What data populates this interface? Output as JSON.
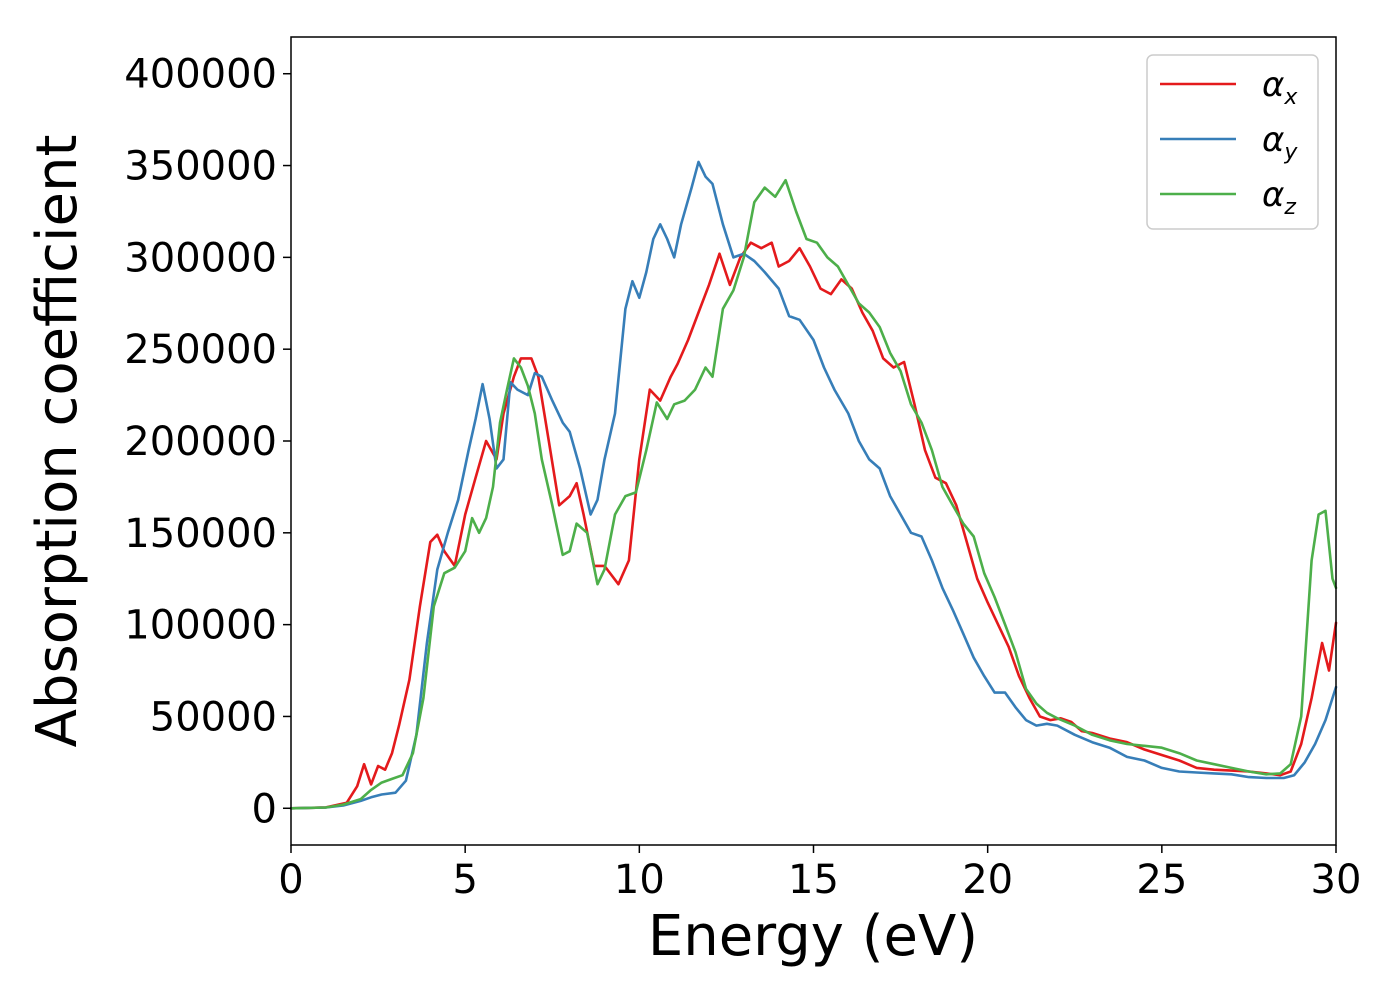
{
  "chart_data": {
    "type": "line",
    "title": "",
    "xlabel": "Energy (eV)",
    "ylabel": "Absorption coefficient",
    "xlim": [
      0,
      30
    ],
    "ylim": [
      -20000,
      420000
    ],
    "xticks": [
      0,
      5,
      10,
      15,
      20,
      25,
      30
    ],
    "yticks": [
      0,
      50000,
      100000,
      150000,
      200000,
      250000,
      300000,
      350000,
      400000
    ],
    "grid": false,
    "legend_position": "top-right",
    "series": [
      {
        "name": "x",
        "legend_symbol": "α",
        "legend_subscript": "x",
        "color": "#e41a1c",
        "x": [
          0,
          1,
          1.6,
          1.9,
          2.1,
          2.3,
          2.5,
          2.7,
          2.9,
          3.1,
          3.4,
          3.7,
          4.0,
          4.2,
          4.4,
          4.7,
          5.0,
          5.3,
          5.6,
          5.9,
          6.1,
          6.4,
          6.6,
          6.9,
          7.1,
          7.4,
          7.7,
          8.0,
          8.2,
          8.4,
          8.7,
          9.0,
          9.4,
          9.7,
          10.0,
          10.3,
          10.6,
          10.9,
          11.1,
          11.4,
          11.7,
          12.0,
          12.3,
          12.6,
          12.9,
          13.2,
          13.5,
          13.8,
          14.0,
          14.3,
          14.6,
          14.9,
          15.2,
          15.5,
          15.8,
          16.1,
          16.4,
          16.7,
          17.0,
          17.3,
          17.6,
          17.9,
          18.2,
          18.5,
          18.8,
          19.1,
          19.4,
          19.7,
          20.0,
          20.3,
          20.6,
          20.9,
          21.2,
          21.5,
          21.8,
          22.1,
          22.4,
          22.7,
          23.0,
          23.5,
          24.0,
          24.5,
          25.0,
          25.5,
          26.0,
          26.5,
          27.0,
          27.5,
          28.0,
          28.4,
          28.7,
          29.0,
          29.3,
          29.6,
          29.8,
          30.0
        ],
        "y": [
          0,
          500,
          3000,
          12000,
          24000,
          13000,
          23000,
          21000,
          30000,
          45000,
          70000,
          110000,
          145000,
          149000,
          140000,
          132000,
          160000,
          180000,
          200000,
          190000,
          215000,
          235000,
          245000,
          245000,
          235000,
          200000,
          165000,
          170000,
          177000,
          160000,
          132000,
          132000,
          122000,
          135000,
          190000,
          228000,
          222000,
          235000,
          242000,
          255000,
          270000,
          285000,
          302000,
          285000,
          300000,
          308000,
          305000,
          308000,
          295000,
          298000,
          305000,
          295000,
          283000,
          280000,
          288000,
          283000,
          270000,
          260000,
          245000,
          240000,
          243000,
          220000,
          195000,
          180000,
          177000,
          165000,
          145000,
          125000,
          112000,
          100000,
          88000,
          72000,
          60000,
          50000,
          48000,
          49000,
          47000,
          42000,
          41000,
          38000,
          36000,
          32000,
          29000,
          26000,
          22000,
          21000,
          20500,
          20000,
          19000,
          18000,
          20000,
          35000,
          60000,
          90000,
          75000,
          101000
        ]
      },
      {
        "name": "y",
        "legend_symbol": "α",
        "legend_subscript": "y",
        "color": "#377eb8",
        "x": [
          0,
          1,
          1.5,
          2.0,
          2.3,
          2.6,
          3.0,
          3.3,
          3.6,
          3.9,
          4.2,
          4.5,
          4.8,
          5.1,
          5.3,
          5.5,
          5.7,
          5.9,
          6.1,
          6.3,
          6.5,
          6.8,
          7.0,
          7.2,
          7.5,
          7.8,
          8.0,
          8.3,
          8.6,
          8.8,
          9.0,
          9.3,
          9.6,
          9.8,
          10.0,
          10.2,
          10.4,
          10.6,
          10.8,
          11.0,
          11.2,
          11.5,
          11.7,
          11.9,
          12.1,
          12.4,
          12.7,
          13.0,
          13.3,
          13.6,
          14.0,
          14.3,
          14.6,
          15.0,
          15.3,
          15.6,
          16.0,
          16.3,
          16.6,
          16.9,
          17.2,
          17.5,
          17.8,
          18.1,
          18.4,
          18.7,
          19.0,
          19.3,
          19.6,
          19.9,
          20.2,
          20.5,
          20.8,
          21.1,
          21.4,
          21.7,
          22.0,
          22.5,
          23.0,
          23.5,
          24.0,
          24.5,
          25.0,
          25.5,
          26.0,
          26.5,
          27.0,
          27.5,
          28.0,
          28.5,
          28.8,
          29.1,
          29.4,
          29.7,
          30.0
        ],
        "y": [
          0,
          400,
          1500,
          4000,
          6000,
          7500,
          8500,
          15000,
          40000,
          90000,
          130000,
          150000,
          168000,
          195000,
          212000,
          231000,
          212000,
          185000,
          190000,
          232000,
          228000,
          225000,
          237000,
          235000,
          222000,
          210000,
          205000,
          185000,
          160000,
          168000,
          190000,
          215000,
          272000,
          287000,
          278000,
          292000,
          310000,
          318000,
          310000,
          300000,
          318000,
          338000,
          352000,
          344000,
          340000,
          318000,
          300000,
          302000,
          298000,
          292000,
          283000,
          268000,
          266000,
          255000,
          240000,
          228000,
          215000,
          200000,
          190000,
          185000,
          170000,
          160000,
          150000,
          148000,
          135000,
          120000,
          108000,
          95000,
          82000,
          72000,
          63000,
          63000,
          55000,
          48000,
          45000,
          46000,
          45000,
          40000,
          36000,
          33000,
          28000,
          26000,
          22000,
          20000,
          19500,
          19000,
          18500,
          17000,
          16500,
          16500,
          18000,
          25000,
          35000,
          48000,
          66000
        ]
      },
      {
        "name": "z",
        "legend_symbol": "α",
        "legend_subscript": "z",
        "color": "#4daf4a",
        "x": [
          0,
          1,
          1.5,
          2.0,
          2.3,
          2.6,
          2.9,
          3.2,
          3.5,
          3.8,
          4.1,
          4.4,
          4.7,
          5.0,
          5.2,
          5.4,
          5.6,
          5.8,
          6.0,
          6.2,
          6.4,
          6.6,
          6.8,
          7.0,
          7.2,
          7.5,
          7.8,
          8.0,
          8.2,
          8.5,
          8.8,
          9.0,
          9.3,
          9.6,
          9.9,
          10.2,
          10.5,
          10.8,
          11.0,
          11.3,
          11.6,
          11.9,
          12.1,
          12.4,
          12.7,
          13.0,
          13.3,
          13.6,
          13.9,
          14.2,
          14.5,
          14.8,
          15.1,
          15.4,
          15.7,
          16.0,
          16.3,
          16.6,
          16.9,
          17.2,
          17.5,
          17.8,
          18.1,
          18.4,
          18.7,
          19.0,
          19.3,
          19.6,
          19.9,
          20.2,
          20.5,
          20.8,
          21.1,
          21.4,
          21.7,
          22.0,
          22.5,
          23.0,
          23.5,
          24.0,
          24.5,
          25.0,
          25.5,
          26.0,
          26.5,
          27.0,
          27.5,
          28.0,
          28.4,
          28.7,
          29.0,
          29.3,
          29.5,
          29.7,
          29.9,
          30.0
        ],
        "y": [
          0,
          400,
          2000,
          5000,
          10000,
          14000,
          16000,
          18000,
          30000,
          60000,
          110000,
          128000,
          131000,
          140000,
          158000,
          150000,
          158000,
          175000,
          210000,
          228000,
          245000,
          240000,
          230000,
          215000,
          190000,
          165000,
          138000,
          140000,
          155000,
          150000,
          122000,
          130000,
          160000,
          170000,
          172000,
          195000,
          221000,
          212000,
          220000,
          222000,
          228000,
          240000,
          235000,
          272000,
          282000,
          300000,
          330000,
          338000,
          333000,
          342000,
          325000,
          310000,
          308000,
          300000,
          295000,
          285000,
          275000,
          270000,
          262000,
          248000,
          238000,
          220000,
          210000,
          195000,
          175000,
          165000,
          155000,
          148000,
          128000,
          115000,
          100000,
          85000,
          65000,
          57000,
          52000,
          49000,
          45000,
          40000,
          37000,
          35000,
          34000,
          33000,
          30000,
          26000,
          24000,
          22000,
          20000,
          18500,
          19000,
          24000,
          50000,
          135000,
          160000,
          162000,
          125000,
          120000
        ]
      }
    ]
  }
}
